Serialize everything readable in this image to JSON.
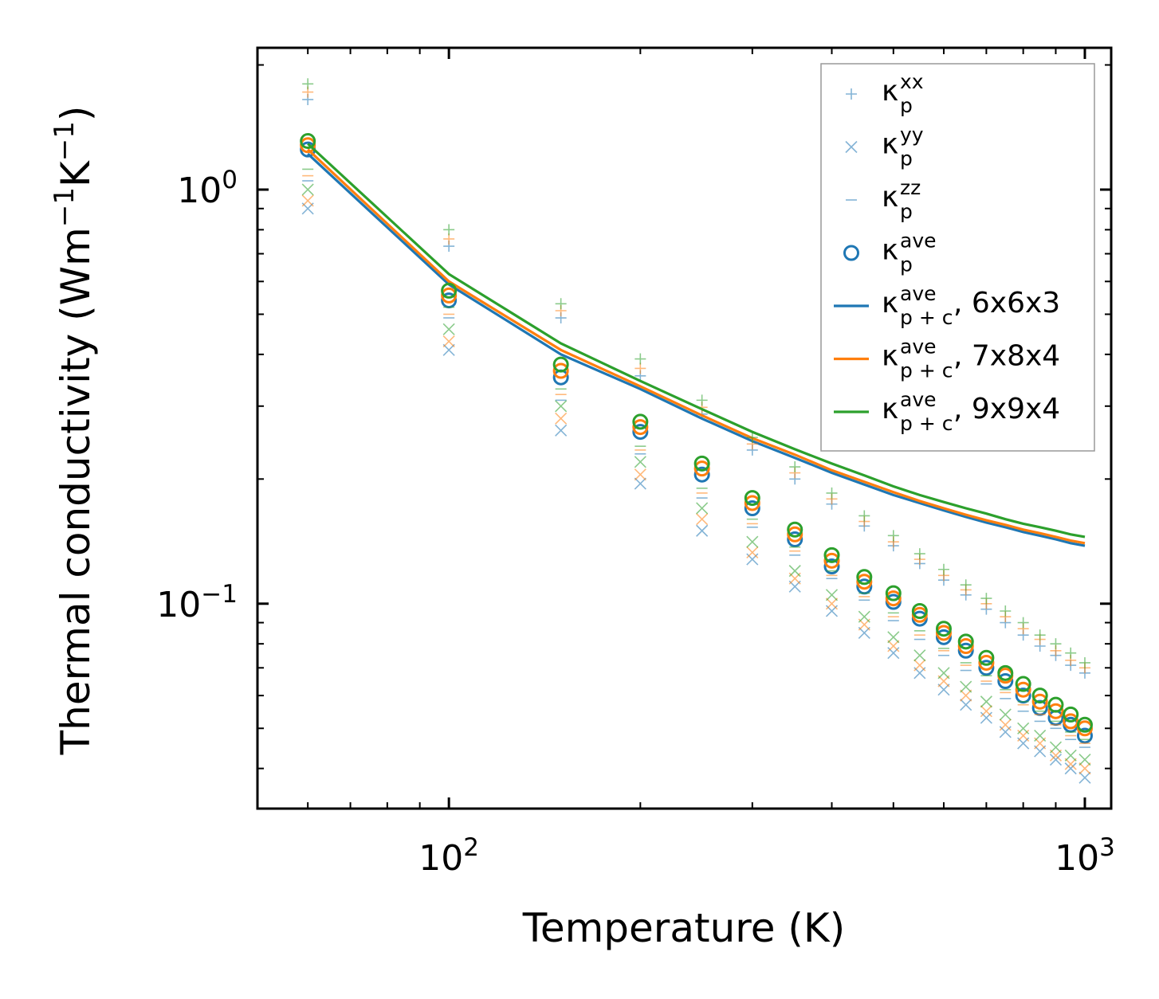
{
  "chart_data": {
    "type": "scatter",
    "xscale": "log",
    "yscale": "log",
    "xlim": [
      50,
      1100
    ],
    "ylim": [
      0.032,
      2.2
    ],
    "xlabel": "Temperature (K)",
    "ylabel": {
      "main": "Thermal conductivity (Wm",
      "exp1": "−1",
      "mid": "K",
      "exp2": "−1",
      "end": ")"
    },
    "x_ticks": [
      {
        "value": 100,
        "base": "10",
        "exp": "2"
      },
      {
        "value": 1000,
        "base": "10",
        "exp": "3"
      }
    ],
    "y_ticks": [
      {
        "value": 1.0,
        "base": "10",
        "exp": "0"
      },
      {
        "value": 0.1,
        "base": "10",
        "exp": "−1"
      }
    ],
    "x": [
      60,
      100,
      150,
      200,
      250,
      300,
      350,
      400,
      450,
      500,
      550,
      600,
      650,
      700,
      750,
      800,
      850,
      900,
      950,
      1000
    ],
    "colors": {
      "blue": "#1f77b4",
      "orange": "#ff7f0e",
      "green": "#2ca02c"
    },
    "series": [
      {
        "name": "6x6x3",
        "color": "#1f77b4",
        "xx": [
          1.65,
          0.73,
          0.49,
          0.355,
          0.287,
          0.235,
          0.2,
          0.174,
          0.154,
          0.138,
          0.125,
          0.114,
          0.105,
          0.097,
          0.09,
          0.084,
          0.079,
          0.075,
          0.071,
          0.068
        ],
        "yy": [
          0.9,
          0.41,
          0.262,
          0.195,
          0.15,
          0.128,
          0.11,
          0.096,
          0.085,
          0.076,
          0.068,
          0.062,
          0.057,
          0.053,
          0.049,
          0.046,
          0.044,
          0.042,
          0.04,
          0.038
        ],
        "zz": [
          1.05,
          0.49,
          0.31,
          0.23,
          0.18,
          0.153,
          0.131,
          0.115,
          0.102,
          0.091,
          0.082,
          0.075,
          0.069,
          0.064,
          0.059,
          0.055,
          0.052,
          0.05,
          0.047,
          0.045
        ],
        "ave": [
          1.25,
          0.54,
          0.352,
          0.26,
          0.205,
          0.17,
          0.143,
          0.123,
          0.11,
          0.101,
          0.092,
          0.083,
          0.077,
          0.07,
          0.065,
          0.06,
          0.056,
          0.053,
          0.051,
          0.048
        ],
        "pc": [
          1.22,
          0.59,
          0.4,
          0.33,
          0.28,
          0.247,
          0.225,
          0.207,
          0.194,
          0.183,
          0.175,
          0.168,
          0.162,
          0.157,
          0.153,
          0.149,
          0.146,
          0.143,
          0.14,
          0.138
        ]
      },
      {
        "name": "7x8x4",
        "color": "#ff7f0e",
        "xx": [
          1.72,
          0.76,
          0.51,
          0.37,
          0.298,
          0.243,
          0.207,
          0.179,
          0.158,
          0.141,
          0.128,
          0.117,
          0.108,
          0.1,
          0.093,
          0.087,
          0.082,
          0.077,
          0.073,
          0.07
        ],
        "yy": [
          0.94,
          0.43,
          0.28,
          0.205,
          0.16,
          0.133,
          0.115,
          0.1,
          0.089,
          0.079,
          0.071,
          0.065,
          0.06,
          0.055,
          0.051,
          0.048,
          0.046,
          0.043,
          0.041,
          0.04
        ],
        "zz": [
          1.08,
          0.5,
          0.32,
          0.235,
          0.185,
          0.156,
          0.134,
          0.117,
          0.104,
          0.093,
          0.084,
          0.077,
          0.071,
          0.065,
          0.061,
          0.057,
          0.054,
          0.051,
          0.048,
          0.046
        ],
        "ave": [
          1.28,
          0.555,
          0.365,
          0.267,
          0.212,
          0.175,
          0.147,
          0.127,
          0.113,
          0.103,
          0.094,
          0.085,
          0.079,
          0.072,
          0.067,
          0.062,
          0.058,
          0.055,
          0.052,
          0.05
        ],
        "pc": [
          1.25,
          0.6,
          0.41,
          0.335,
          0.285,
          0.251,
          0.229,
          0.21,
          0.197,
          0.186,
          0.177,
          0.17,
          0.164,
          0.159,
          0.155,
          0.151,
          0.148,
          0.145,
          0.142,
          0.14
        ]
      },
      {
        "name": "9x9x4",
        "color": "#2ca02c",
        "xx": [
          1.8,
          0.8,
          0.53,
          0.39,
          0.31,
          0.252,
          0.214,
          0.185,
          0.163,
          0.146,
          0.132,
          0.121,
          0.111,
          0.103,
          0.096,
          0.09,
          0.084,
          0.08,
          0.076,
          0.072
        ],
        "yy": [
          1.0,
          0.46,
          0.3,
          0.22,
          0.17,
          0.141,
          0.12,
          0.105,
          0.093,
          0.083,
          0.075,
          0.068,
          0.063,
          0.058,
          0.054,
          0.05,
          0.048,
          0.045,
          0.043,
          0.042
        ],
        "zz": [
          1.12,
          0.52,
          0.33,
          0.24,
          0.19,
          0.16,
          0.137,
          0.12,
          0.106,
          0.095,
          0.086,
          0.078,
          0.072,
          0.067,
          0.062,
          0.058,
          0.055,
          0.052,
          0.049,
          0.047
        ],
        "ave": [
          1.31,
          0.57,
          0.378,
          0.275,
          0.218,
          0.18,
          0.151,
          0.131,
          0.116,
          0.106,
          0.096,
          0.087,
          0.081,
          0.074,
          0.068,
          0.064,
          0.06,
          0.057,
          0.054,
          0.051
        ],
        "pc": [
          1.29,
          0.625,
          0.425,
          0.345,
          0.295,
          0.26,
          0.236,
          0.218,
          0.204,
          0.192,
          0.183,
          0.176,
          0.17,
          0.165,
          0.16,
          0.156,
          0.153,
          0.15,
          0.147,
          0.145
        ]
      }
    ],
    "legend": {
      "position": "top-right",
      "entries": [
        {
          "marker": "plus",
          "base": "κ",
          "sup": "xx",
          "sub": "p",
          "suffix": ""
        },
        {
          "marker": "x",
          "base": "κ",
          "sup": "yy",
          "sub": "p",
          "suffix": ""
        },
        {
          "marker": "dash",
          "base": "κ",
          "sup": "zz",
          "sub": "p",
          "suffix": ""
        },
        {
          "marker": "circle",
          "base": "κ",
          "sup": "ave",
          "sub": "p",
          "suffix": ""
        },
        {
          "marker": "line",
          "base": "κ",
          "sup": "ave",
          "sub": "p + c",
          "suffix": ", 6x6x3",
          "color": "#1f77b4"
        },
        {
          "marker": "line",
          "base": "κ",
          "sup": "ave",
          "sub": "p + c",
          "suffix": ", 7x8x4",
          "color": "#ff7f0e"
        },
        {
          "marker": "line",
          "base": "κ",
          "sup": "ave",
          "sub": "p + c",
          "suffix": ", 9x9x4",
          "color": "#2ca02c"
        }
      ]
    }
  }
}
